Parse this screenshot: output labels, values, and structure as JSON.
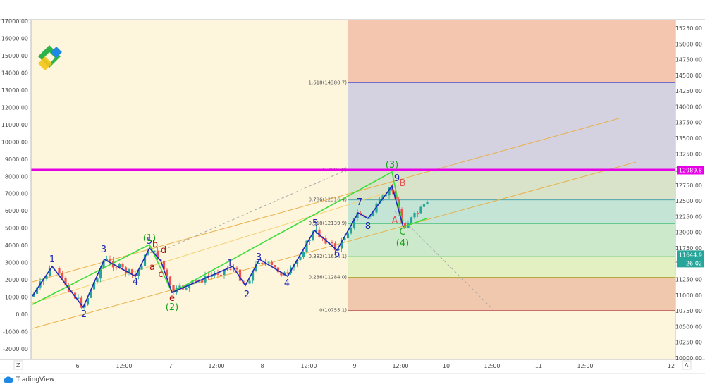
{
  "footer": {
    "brand": "TradingView"
  },
  "axis_buttons": {
    "left": "Z",
    "right": "A"
  },
  "chart_data": {
    "type": "candlestick",
    "left_axis": {
      "ticks": [
        "17000.00",
        "16000.00",
        "15000.00",
        "14000.00",
        "13000.00",
        "12000.00",
        "11000.00",
        "10000.00",
        "9000.00",
        "8000.00",
        "7000.00",
        "6000.00",
        "5000.00",
        "4000.00",
        "3000.00",
        "2000.00",
        "1000.00",
        "0.00",
        "-1000.00",
        "-2000.00"
      ],
      "range": [
        -2000,
        17000
      ]
    },
    "right_axis": {
      "ticks": [
        "15250.00",
        "15000.00",
        "14750.00",
        "14500.00",
        "14250.00",
        "14000.00",
        "13750.00",
        "13500.00",
        "13250.00",
        "13000.00",
        "12750.00",
        "12500.00",
        "12250.00",
        "12000.00",
        "11750.00",
        "11500.00",
        "11250.00",
        "11000.00",
        "10750.00",
        "10500.00",
        "10250.00",
        "10000.00"
      ],
      "range": [
        10000,
        15250
      ]
    },
    "x_axis": {
      "ticks": [
        "6",
        "12:00",
        "7",
        "12:00",
        "8",
        "12:00",
        "9",
        "12:00",
        "10",
        "12:00",
        "11",
        "12:00",
        "12"
      ]
    },
    "price_badges": [
      {
        "value": "12989.8",
        "color": "#e600e6"
      },
      {
        "value": "11644.9",
        "color": "#26a69a"
      },
      {
        "value": "26:02",
        "color": "#26a69a"
      }
    ],
    "horizontal_line": {
      "price": 12989.8,
      "color": "#e600e6"
    },
    "fib_levels": [
      {
        "label": "1.618(14380.7)",
        "price": 14380.7
      },
      {
        "label": "1(12995.9)",
        "price": 12995.9
      },
      {
        "label": "0.786(12516.4)",
        "price": 12516.4
      },
      {
        "label": "0.618(12139.9)",
        "price": 12139.9
      },
      {
        "label": "0.382(11614.1)",
        "price": 11614.1
      },
      {
        "label": "0.236(11284.0)",
        "price": 11284.0
      },
      {
        "label": "0(10755.1)",
        "price": 10755.1
      }
    ],
    "wave_labels": [
      {
        "text": "1",
        "color": "#1e2ab8"
      },
      {
        "text": "2",
        "color": "#1e2ab8"
      },
      {
        "text": "3",
        "color": "#1e2ab8"
      },
      {
        "text": "4",
        "color": "#1e2ab8"
      },
      {
        "text": "5",
        "color": "#1e2ab8"
      },
      {
        "text": "(1)",
        "color": "#1aa31a"
      },
      {
        "text": "b",
        "color": "#b01010"
      },
      {
        "text": "d",
        "color": "#b01010"
      },
      {
        "text": "a",
        "color": "#b01010"
      },
      {
        "text": "c",
        "color": "#b01010"
      },
      {
        "text": "e",
        "color": "#b01010"
      },
      {
        "text": "(2)",
        "color": "#1aa31a"
      },
      {
        "text": "1",
        "color": "#1e2ab8"
      },
      {
        "text": "2",
        "color": "#1e2ab8"
      },
      {
        "text": "3",
        "color": "#1e2ab8"
      },
      {
        "text": "4",
        "color": "#1e2ab8"
      },
      {
        "text": "5",
        "color": "#1e2ab8"
      },
      {
        "text": "6",
        "color": "#1e2ab8"
      },
      {
        "text": "7",
        "color": "#1e2ab8"
      },
      {
        "text": "8",
        "color": "#1e2ab8"
      },
      {
        "text": "9",
        "color": "#1e2ab8"
      },
      {
        "text": "(3)",
        "color": "#1aa31a"
      },
      {
        "text": "B",
        "color": "#e05050"
      },
      {
        "text": "A",
        "color": "#e05050"
      },
      {
        "text": "C",
        "color": "#1aa31a"
      },
      {
        "text": "(4)",
        "color": "#1aa31a"
      }
    ],
    "colors": {
      "up": "#26a69a",
      "down": "#ef5350",
      "wave_blue": "#1e2ab8",
      "wave_green": "#3ddc3d",
      "channel": "#e8c24a"
    }
  }
}
